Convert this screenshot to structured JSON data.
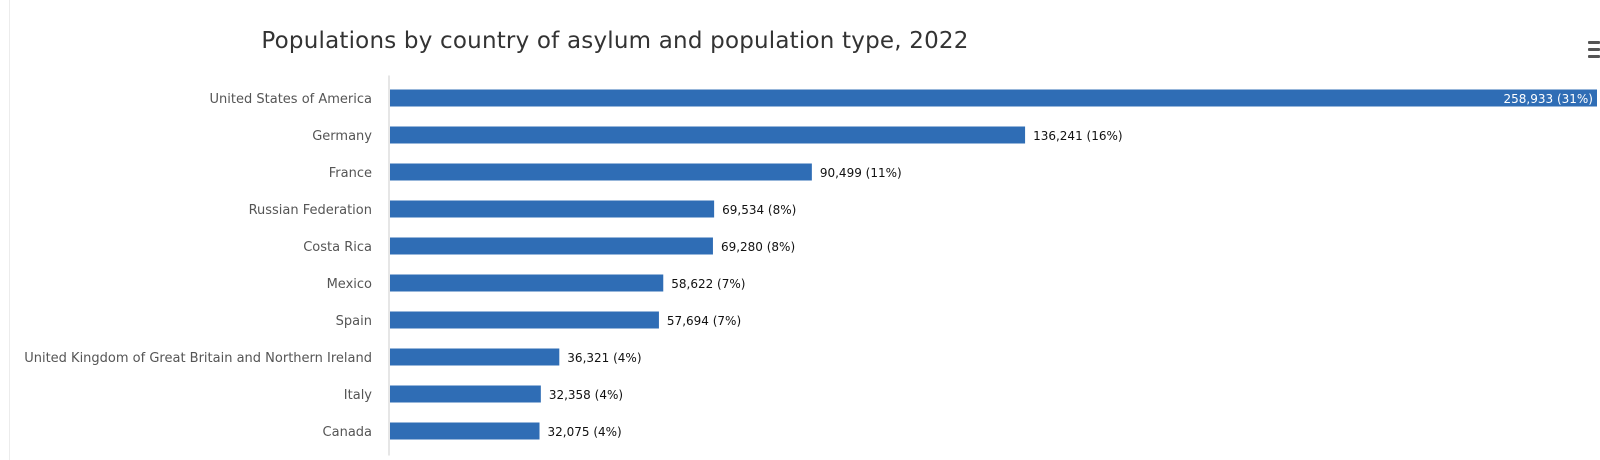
{
  "chart_data": {
    "type": "bar",
    "orientation": "horizontal",
    "title": "Populations by country of asylum and population type, 2022",
    "xlabel": "",
    "ylabel": "",
    "xlim": [
      0,
      258933
    ],
    "grid": false,
    "legend": "none",
    "series_color": "#2f6db5",
    "categories": [
      "United States of America",
      "Germany",
      "France",
      "Russian Federation",
      "Costa Rica",
      "Mexico",
      "Spain",
      "United Kingdom of Great Britain and Northern Ireland",
      "Italy",
      "Canada"
    ],
    "values": [
      258933,
      136241,
      90499,
      69534,
      69280,
      58622,
      57694,
      36321,
      32358,
      32075
    ],
    "data_labels": [
      "258,933 (31%)",
      "136,241 (16%)",
      "90,499 (11%)",
      "69,534 (8%)",
      "69,280 (8%)",
      "58,622 (7%)",
      "57,694 (7%)",
      "36,321 (4%)",
      "32,358 (4%)",
      "32,075 (4%)"
    ]
  },
  "toolbar": {
    "menu_icon": "hamburger-menu-icon"
  }
}
